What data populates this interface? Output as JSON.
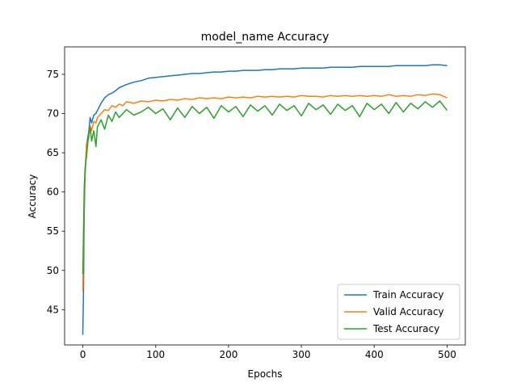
{
  "chart_data": {
    "type": "line",
    "title": "model_name Accuracy",
    "xlabel": "Epochs",
    "ylabel": "Accuracy",
    "xlim": [
      -25,
      525
    ],
    "ylim": [
      40.5,
      78.5
    ],
    "xticks": [
      0,
      100,
      200,
      300,
      400,
      500
    ],
    "yticks": [
      45,
      50,
      55,
      60,
      65,
      70,
      75
    ],
    "grid": false,
    "legend_position": "lower-right",
    "series": [
      {
        "name": "Train Accuracy",
        "color": "#1f77b4",
        "x": [
          0,
          1,
          2,
          3,
          5,
          8,
          10,
          12,
          15,
          18,
          20,
          25,
          30,
          35,
          40,
          45,
          50,
          55,
          60,
          70,
          80,
          90,
          100,
          110,
          120,
          130,
          140,
          150,
          160,
          170,
          180,
          190,
          200,
          210,
          220,
          230,
          240,
          250,
          260,
          270,
          280,
          290,
          300,
          310,
          320,
          330,
          340,
          350,
          360,
          370,
          380,
          390,
          400,
          410,
          420,
          430,
          440,
          450,
          460,
          470,
          480,
          490,
          500
        ],
        "values": [
          41.8,
          47.5,
          57.5,
          62.0,
          66.0,
          67.6,
          69.5,
          68.8,
          69.8,
          70.0,
          70.4,
          71.3,
          72.0,
          72.4,
          72.6,
          72.9,
          73.3,
          73.5,
          73.7,
          74.0,
          74.2,
          74.5,
          74.6,
          74.7,
          74.8,
          74.9,
          75.0,
          75.1,
          75.1,
          75.2,
          75.3,
          75.3,
          75.4,
          75.4,
          75.5,
          75.5,
          75.5,
          75.6,
          75.6,
          75.7,
          75.7,
          75.7,
          75.8,
          75.8,
          75.8,
          75.8,
          75.9,
          75.9,
          75.9,
          75.9,
          76.0,
          76.0,
          76.0,
          76.0,
          76.0,
          76.1,
          76.1,
          76.1,
          76.1,
          76.1,
          76.2,
          76.2,
          76.1
        ]
      },
      {
        "name": "Valid Accuracy",
        "color": "#ff7f0e",
        "x": [
          0,
          1,
          2,
          3,
          5,
          8,
          10,
          12,
          15,
          18,
          20,
          25,
          30,
          35,
          40,
          45,
          50,
          55,
          60,
          70,
          80,
          90,
          100,
          110,
          120,
          130,
          140,
          150,
          160,
          170,
          180,
          190,
          200,
          210,
          220,
          230,
          240,
          250,
          260,
          270,
          280,
          290,
          300,
          310,
          320,
          330,
          340,
          350,
          360,
          370,
          380,
          390,
          400,
          410,
          420,
          430,
          440,
          450,
          460,
          470,
          480,
          490,
          500
        ],
        "values": [
          47.3,
          52.5,
          59.0,
          62.5,
          66.2,
          66.8,
          68.5,
          67.8,
          69.0,
          68.8,
          69.5,
          70.0,
          70.5,
          70.4,
          71.0,
          70.8,
          71.2,
          71.0,
          71.5,
          71.3,
          71.6,
          71.5,
          71.7,
          71.6,
          71.8,
          71.7,
          71.9,
          71.8,
          72.0,
          71.9,
          72.0,
          71.9,
          72.1,
          72.0,
          72.1,
          72.0,
          72.2,
          72.1,
          72.2,
          72.1,
          72.2,
          72.1,
          72.3,
          72.2,
          72.2,
          72.1,
          72.3,
          72.2,
          72.3,
          72.2,
          72.3,
          72.2,
          72.3,
          72.2,
          72.4,
          72.2,
          72.3,
          72.2,
          72.4,
          72.3,
          72.5,
          72.4,
          72.0
        ]
      },
      {
        "name": "Test Accuracy",
        "color": "#2ca02c",
        "x": [
          0,
          1,
          2,
          3,
          5,
          8,
          10,
          12,
          15,
          18,
          20,
          25,
          30,
          35,
          40,
          45,
          50,
          55,
          60,
          70,
          80,
          90,
          100,
          110,
          120,
          130,
          140,
          150,
          160,
          170,
          180,
          190,
          200,
          210,
          220,
          230,
          240,
          250,
          260,
          270,
          280,
          290,
          300,
          310,
          320,
          330,
          340,
          350,
          360,
          370,
          380,
          390,
          400,
          410,
          420,
          430,
          440,
          450,
          460,
          470,
          480,
          490,
          500
        ],
        "values": [
          49.5,
          55.0,
          60.5,
          63.0,
          64.5,
          67.5,
          68.2,
          66.5,
          67.8,
          65.8,
          68.3,
          69.2,
          68.0,
          69.8,
          69.0,
          70.2,
          69.5,
          70.0,
          70.5,
          69.8,
          70.2,
          70.8,
          70.0,
          70.6,
          69.2,
          70.7,
          69.5,
          70.9,
          70.0,
          70.8,
          69.4,
          71.0,
          70.2,
          70.9,
          69.6,
          71.1,
          70.3,
          71.0,
          69.8,
          71.2,
          70.4,
          71.0,
          69.7,
          71.3,
          70.5,
          71.1,
          69.9,
          71.2,
          70.4,
          71.0,
          69.6,
          71.3,
          70.5,
          71.2,
          70.0,
          71.4,
          70.2,
          71.3,
          70.6,
          71.5,
          70.8,
          71.6,
          70.4
        ]
      }
    ]
  }
}
